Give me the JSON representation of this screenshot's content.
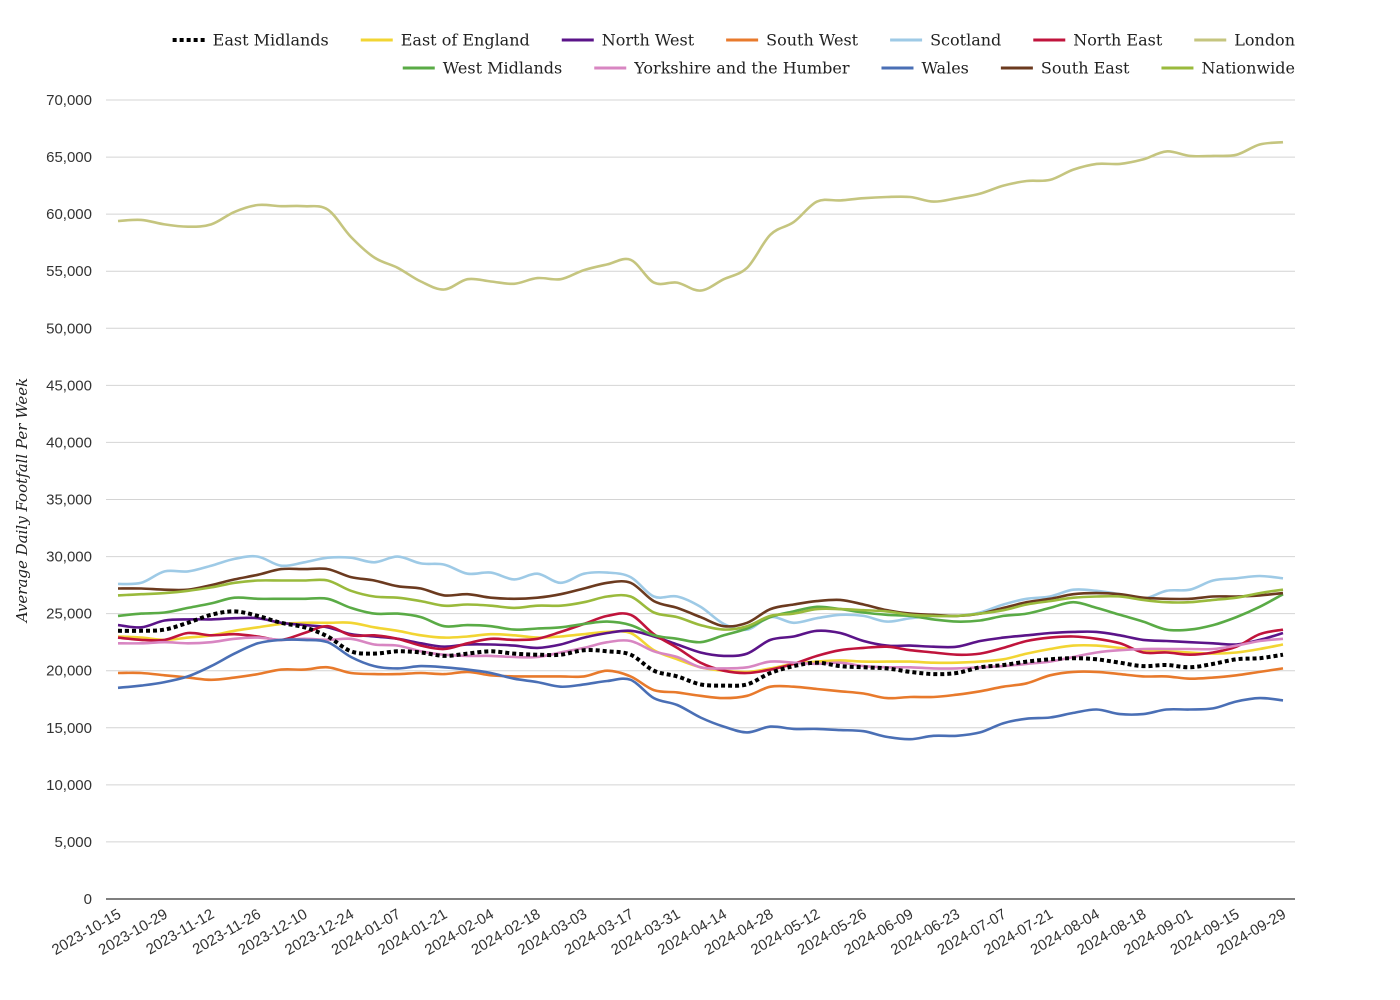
{
  "chart_data": {
    "type": "line",
    "ylabel": "Average Daily Footfall Per Week",
    "xlabel": "",
    "title": "",
    "ylim": [
      0,
      70000
    ],
    "yticks": [
      0,
      5000,
      10000,
      15000,
      20000,
      25000,
      30000,
      35000,
      40000,
      45000,
      50000,
      55000,
      60000,
      65000,
      70000
    ],
    "ytick_labels": [
      "0",
      "5,000",
      "10,000",
      "15,000",
      "20,000",
      "25,000",
      "30,000",
      "35,000",
      "40,000",
      "45,000",
      "50,000",
      "55,000",
      "60,000",
      "65,000",
      "70,000"
    ],
    "grid": true,
    "legend_position": "top-right",
    "x": [
      "2023-10-15",
      "2023-10-22",
      "2023-10-29",
      "2023-11-05",
      "2023-11-12",
      "2023-11-19",
      "2023-11-26",
      "2023-12-03",
      "2023-12-10",
      "2023-12-17",
      "2023-12-24",
      "2023-12-31",
      "2024-01-07",
      "2024-01-14",
      "2024-01-21",
      "2024-01-28",
      "2024-02-04",
      "2024-02-11",
      "2024-02-18",
      "2024-02-25",
      "2024-03-03",
      "2024-03-10",
      "2024-03-17",
      "2024-03-24",
      "2024-03-31",
      "2024-04-07",
      "2024-04-14",
      "2024-04-21",
      "2024-04-28",
      "2024-05-05",
      "2024-05-12",
      "2024-05-19",
      "2024-05-26",
      "2024-06-02",
      "2024-06-09",
      "2024-06-16",
      "2024-06-23",
      "2024-06-30",
      "2024-07-07",
      "2024-07-14",
      "2024-07-21",
      "2024-07-28",
      "2024-08-04",
      "2024-08-11",
      "2024-08-18",
      "2024-08-25",
      "2024-09-01",
      "2024-09-08",
      "2024-09-15",
      "2024-09-22",
      "2024-09-29"
    ],
    "xtick_labels": [
      "2023-10-15",
      "2023-10-29",
      "2023-11-12",
      "2023-11-26",
      "2023-12-10",
      "2023-12-24",
      "2024-01-07",
      "2024-01-21",
      "2024-02-04",
      "2024-02-18",
      "2024-03-03",
      "2024-03-17",
      "2024-03-31",
      "2024-04-14",
      "2024-04-28",
      "2024-05-12",
      "2024-05-26",
      "2024-06-09",
      "2024-06-23",
      "2024-07-07",
      "2024-07-21",
      "2024-08-04",
      "2024-08-18",
      "2024-09-01",
      "2024-09-15",
      "2024-09-29"
    ],
    "series": [
      {
        "name": "East Midlands",
        "color": "#000000",
        "dashed": true,
        "values": [
          23500,
          23500,
          23600,
          24200,
          24900,
          25200,
          24800,
          24200,
          23800,
          23000,
          21700,
          21500,
          21700,
          21600,
          21300,
          21500,
          21700,
          21500,
          21400,
          21400,
          21800,
          21700,
          21400,
          20000,
          19500,
          18800,
          18700,
          18800,
          19800,
          20400,
          20700,
          20400,
          20300,
          20200,
          19900,
          19700,
          19800,
          20300,
          20500,
          20800,
          21000,
          21100,
          21000,
          20700,
          20400,
          20500,
          20300,
          20600,
          21000,
          21100,
          21400
        ]
      },
      {
        "name": "East of England",
        "color": "#f2d533",
        "dashed": false,
        "values": [
          23000,
          22900,
          22700,
          22900,
          23100,
          23500,
          23800,
          24100,
          24200,
          24200,
          24200,
          23800,
          23500,
          23100,
          22900,
          23000,
          23200,
          23100,
          22900,
          23000,
          23200,
          23400,
          23300,
          21800,
          21000,
          20300,
          20000,
          19900,
          20200,
          20600,
          20800,
          20900,
          20800,
          20800,
          20800,
          20700,
          20700,
          20800,
          21000,
          21500,
          21900,
          22200,
          22200,
          22000,
          21800,
          21700,
          21600,
          21500,
          21600,
          21900,
          22300
        ]
      },
      {
        "name": "North West",
        "color": "#5b1489",
        "dashed": false,
        "values": [
          24000,
          23800,
          24400,
          24500,
          24500,
          24600,
          24600,
          24200,
          24000,
          23800,
          23200,
          23000,
          22800,
          22400,
          22100,
          22300,
          22300,
          22200,
          22000,
          22300,
          22900,
          23300,
          23500,
          23000,
          22300,
          21600,
          21300,
          21500,
          22700,
          23000,
          23500,
          23300,
          22600,
          22200,
          22200,
          22100,
          22100,
          22600,
          22900,
          23100,
          23300,
          23400,
          23400,
          23100,
          22700,
          22600,
          22500,
          22400,
          22300,
          22700,
          23300
        ]
      },
      {
        "name": "South West",
        "color": "#e87a2c",
        "dashed": false,
        "values": [
          19800,
          19800,
          19600,
          19400,
          19200,
          19400,
          19700,
          20100,
          20100,
          20300,
          19800,
          19700,
          19700,
          19800,
          19700,
          19900,
          19600,
          19500,
          19500,
          19500,
          19500,
          20000,
          19500,
          18300,
          18100,
          17800,
          17600,
          17800,
          18600,
          18600,
          18400,
          18200,
          18000,
          17600,
          17700,
          17700,
          17900,
          18200,
          18600,
          18900,
          19600,
          19900,
          19900,
          19700,
          19500,
          19500,
          19300,
          19400,
          19600,
          19900,
          20200
        ]
      },
      {
        "name": "Scotland",
        "color": "#9ecae6",
        "dashed": false,
        "values": [
          27600,
          27700,
          28700,
          28700,
          29200,
          29800,
          30000,
          29200,
          29500,
          29900,
          29900,
          29500,
          30000,
          29400,
          29300,
          28500,
          28600,
          28000,
          28500,
          27700,
          28500,
          28600,
          28200,
          26500,
          26500,
          25600,
          24100,
          23600,
          24700,
          24200,
          24600,
          24900,
          24800,
          24300,
          24600,
          24800,
          24800,
          25100,
          25800,
          26300,
          26500,
          27100,
          27000,
          26700,
          26300,
          27000,
          27100,
          27900,
          28100,
          28300,
          28100
        ]
      },
      {
        "name": "North East",
        "color": "#c0143c",
        "dashed": false,
        "values": [
          22900,
          22700,
          22700,
          23300,
          23100,
          23200,
          23000,
          22700,
          23300,
          23900,
          23100,
          23100,
          22800,
          22200,
          21900,
          22400,
          22800,
          22700,
          22800,
          23400,
          24100,
          24800,
          24900,
          23200,
          22000,
          20700,
          20000,
          19800,
          20100,
          20600,
          21300,
          21800,
          22000,
          22100,
          21800,
          21600,
          21400,
          21500,
          22000,
          22600,
          22900,
          23000,
          22800,
          22400,
          21600,
          21600,
          21400,
          21600,
          22100,
          23200,
          23600
        ]
      },
      {
        "name": "London",
        "color": "#c5c57f",
        "dashed": false,
        "values": [
          59400,
          59500,
          59100,
          58900,
          59100,
          60200,
          60800,
          60700,
          60700,
          60400,
          58000,
          56200,
          55300,
          54100,
          53400,
          54300,
          54100,
          53900,
          54400,
          54300,
          55100,
          55600,
          56000,
          54000,
          54000,
          53300,
          54300,
          55300,
          58200,
          59300,
          61100,
          61200,
          61400,
          61500,
          61500,
          61100,
          61400,
          61800,
          62500,
          62900,
          63000,
          63900,
          64400,
          64400,
          64800,
          65500,
          65100,
          65100,
          65200,
          66100,
          66300
        ]
      },
      {
        "name": "West Midlands",
        "color": "#5aab46",
        "dashed": false,
        "values": [
          24800,
          25000,
          25100,
          25500,
          25900,
          26400,
          26300,
          26300,
          26300,
          26300,
          25500,
          25000,
          25000,
          24700,
          23900,
          24000,
          23900,
          23600,
          23700,
          23800,
          24100,
          24300,
          24000,
          23100,
          22800,
          22500,
          23100,
          23700,
          24700,
          25200,
          25600,
          25400,
          25100,
          24900,
          24800,
          24500,
          24300,
          24400,
          24800,
          25000,
          25500,
          26000,
          25500,
          24900,
          24300,
          23600,
          23600,
          24000,
          24700,
          25600,
          26700
        ]
      },
      {
        "name": "Yorkshire and the Humber",
        "color": "#d886c2",
        "dashed": false,
        "values": [
          22400,
          22400,
          22500,
          22400,
          22500,
          22800,
          22900,
          22700,
          22800,
          22700,
          22800,
          22300,
          22200,
          21700,
          21400,
          21300,
          21300,
          21200,
          21200,
          21600,
          22000,
          22500,
          22600,
          21700,
          21200,
          20300,
          20200,
          20300,
          20800,
          20700,
          20600,
          20700,
          20400,
          20300,
          20300,
          20200,
          20200,
          20300,
          20400,
          20600,
          20800,
          21200,
          21600,
          21800,
          21900,
          21900,
          21900,
          21900,
          22200,
          22600,
          22800
        ]
      },
      {
        "name": "Wales",
        "color": "#4a6fb5",
        "dashed": false,
        "values": [
          18500,
          18700,
          19000,
          19500,
          20400,
          21500,
          22400,
          22700,
          22700,
          22500,
          21200,
          20400,
          20200,
          20400,
          20300,
          20100,
          19800,
          19300,
          19000,
          18600,
          18800,
          19100,
          19200,
          17600,
          17000,
          15900,
          15100,
          14600,
          15100,
          14900,
          14900,
          14800,
          14700,
          14200,
          14000,
          14300,
          14300,
          14600,
          15400,
          15800,
          15900,
          16300,
          16600,
          16200,
          16200,
          16600,
          16600,
          16700,
          17300,
          17600,
          17400
        ]
      },
      {
        "name": "South East",
        "color": "#6b3a1f",
        "dashed": false,
        "values": [
          27200,
          27200,
          27100,
          27100,
          27500,
          28000,
          28400,
          28900,
          28900,
          28900,
          28200,
          27900,
          27400,
          27200,
          26600,
          26700,
          26400,
          26300,
          26400,
          26700,
          27200,
          27700,
          27700,
          26100,
          25500,
          24700,
          23900,
          24200,
          25400,
          25800,
          26100,
          26200,
          25800,
          25300,
          25000,
          24900,
          24800,
          25000,
          25500,
          26000,
          26300,
          26700,
          26800,
          26700,
          26400,
          26300,
          26300,
          26500,
          26500,
          26600,
          26800
        ]
      },
      {
        "name": "Nationwide",
        "color": "#9aba3c",
        "dashed": false,
        "values": [
          26600,
          26700,
          26800,
          27000,
          27300,
          27700,
          27900,
          27900,
          27900,
          27900,
          27000,
          26500,
          26400,
          26100,
          25700,
          25800,
          25700,
          25500,
          25700,
          25700,
          26000,
          26500,
          26500,
          25100,
          24700,
          24000,
          23600,
          23900,
          24800,
          25000,
          25400,
          25400,
          25300,
          25200,
          24900,
          24800,
          24800,
          25000,
          25300,
          25800,
          26100,
          26400,
          26500,
          26500,
          26200,
          26000,
          26000,
          26200,
          26400,
          26800,
          27100
        ]
      }
    ]
  }
}
